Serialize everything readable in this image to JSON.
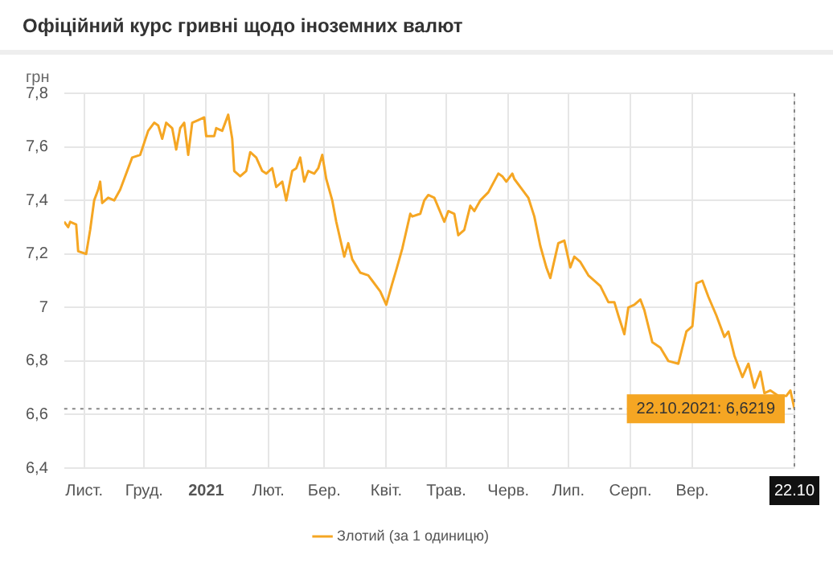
{
  "chart_data": {
    "type": "line",
    "title": "Офіційний курс гривні щодо іноземних валют",
    "ylabel": "грн",
    "x": [
      "2020-10-22",
      "2020-10-24",
      "2020-10-25",
      "2020-10-28",
      "2020-10-29",
      "2020-11-02",
      "2020-11-04",
      "2020-11-06",
      "2020-11-08",
      "2020-11-09",
      "2020-11-10",
      "2020-11-13",
      "2020-11-16",
      "2020-11-19",
      "2020-11-21",
      "2020-11-25",
      "2020-11-29",
      "2020-12-03",
      "2020-12-06",
      "2020-12-08",
      "2020-12-10",
      "2020-12-12",
      "2020-12-15",
      "2020-12-17",
      "2020-12-19",
      "2020-12-21",
      "2020-12-23",
      "2020-12-25",
      "2020-12-28",
      "2020-12-31",
      "2021-01-01",
      "2021-01-05",
      "2021-01-06",
      "2021-01-09",
      "2021-01-12",
      "2021-01-14",
      "2021-01-15",
      "2021-01-18",
      "2021-01-21",
      "2021-01-23",
      "2021-01-26",
      "2021-01-29",
      "2021-01-31",
      "2021-02-03",
      "2021-02-05",
      "2021-02-08",
      "2021-02-10",
      "2021-02-13",
      "2021-02-15",
      "2021-02-17",
      "2021-02-19",
      "2021-02-21",
      "2021-02-24",
      "2021-02-26",
      "2021-02-28",
      "2021-03-02",
      "2021-03-05",
      "2021-03-07",
      "2021-03-11",
      "2021-03-13",
      "2021-03-15",
      "2021-03-19",
      "2021-03-23",
      "2021-03-25",
      "2021-03-29",
      "2021-04-01",
      "2021-04-04",
      "2021-04-06",
      "2021-04-09",
      "2021-04-13",
      "2021-04-14",
      "2021-04-18",
      "2021-04-20",
      "2021-04-22",
      "2021-04-25",
      "2021-04-30",
      "2021-05-02",
      "2021-05-05",
      "2021-05-07",
      "2021-05-10",
      "2021-05-13",
      "2021-05-15",
      "2021-05-18",
      "2021-05-22",
      "2021-05-27",
      "2021-05-29",
      "2021-05-31",
      "2021-06-03",
      "2021-06-04",
      "2021-06-08",
      "2021-06-11",
      "2021-06-14",
      "2021-06-17",
      "2021-06-20",
      "2021-06-22",
      "2021-06-26",
      "2021-06-29",
      "2021-07-02",
      "2021-07-04",
      "2021-07-07",
      "2021-07-11",
      "2021-07-17",
      "2021-07-21",
      "2021-07-24",
      "2021-07-26",
      "2021-07-29",
      "2021-07-31",
      "2021-08-03",
      "2021-08-06",
      "2021-08-08",
      "2021-08-12",
      "2021-08-16",
      "2021-08-20",
      "2021-08-25",
      "2021-08-27",
      "2021-08-29",
      "2021-09-01",
      "2021-09-03",
      "2021-09-06",
      "2021-09-09",
      "2021-09-13",
      "2021-09-17",
      "2021-09-19",
      "2021-09-22",
      "2021-09-26",
      "2021-09-29",
      "2021-10-02",
      "2021-10-05",
      "2021-10-07",
      "2021-10-10",
      "2021-10-14",
      "2021-10-18",
      "2021-10-20",
      "2021-10-22"
    ],
    "series": [
      {
        "name": "Злотий (за 1 одиницю)",
        "color": "#f5a623",
        "values": [
          7.32,
          7.3,
          7.32,
          7.31,
          7.21,
          7.2,
          7.29,
          7.4,
          7.44,
          7.47,
          7.39,
          7.41,
          7.4,
          7.44,
          7.48,
          7.56,
          7.57,
          7.66,
          7.69,
          7.68,
          7.63,
          7.69,
          7.67,
          7.59,
          7.67,
          7.69,
          7.57,
          7.69,
          7.7,
          7.71,
          7.64,
          7.64,
          7.67,
          7.66,
          7.72,
          7.63,
          7.51,
          7.49,
          7.51,
          7.58,
          7.56,
          7.51,
          7.5,
          7.52,
          7.45,
          7.47,
          7.4,
          7.51,
          7.52,
          7.56,
          7.47,
          7.51,
          7.5,
          7.52,
          7.57,
          7.48,
          7.4,
          7.32,
          7.19,
          7.24,
          7.18,
          7.13,
          7.12,
          7.1,
          7.06,
          7.01,
          7.09,
          7.14,
          7.22,
          7.35,
          7.34,
          7.35,
          7.4,
          7.42,
          7.41,
          7.32,
          7.36,
          7.35,
          7.27,
          7.29,
          7.38,
          7.36,
          7.4,
          7.43,
          7.5,
          7.49,
          7.47,
          7.5,
          7.48,
          7.44,
          7.41,
          7.34,
          7.23,
          7.15,
          7.11,
          7.24,
          7.25,
          7.15,
          7.19,
          7.17,
          7.12,
          7.08,
          7.02,
          7.02,
          6.97,
          6.9,
          7.0,
          7.01,
          7.03,
          6.99,
          6.87,
          6.85,
          6.8,
          6.79,
          6.85,
          6.91,
          6.93,
          7.09,
          7.1,
          7.04,
          6.97,
          6.89,
          6.91,
          6.82,
          6.74,
          6.79,
          6.7,
          6.76,
          6.68,
          6.69,
          6.67,
          6.67,
          6.69,
          6.6219
        ]
      }
    ],
    "xlim": [
      "2020-10-22",
      "2021-10-22"
    ],
    "xticks": [
      {
        "value": "2020-11-01",
        "label": "Лист."
      },
      {
        "value": "2020-12-01",
        "label": "Груд."
      },
      {
        "value": "2021-01-01",
        "label": "2021"
      },
      {
        "value": "2021-02-01",
        "label": "Лют."
      },
      {
        "value": "2021-03-01",
        "label": "Бер."
      },
      {
        "value": "2021-04-01",
        "label": "Квіт."
      },
      {
        "value": "2021-05-01",
        "label": "Трав."
      },
      {
        "value": "2021-06-01",
        "label": "Черв."
      },
      {
        "value": "2021-07-01",
        "label": "Лип."
      },
      {
        "value": "2021-08-01",
        "label": "Серп."
      },
      {
        "value": "2021-09-01",
        "label": "Вер."
      },
      {
        "value": "2021-10-22",
        "label": "22.10"
      }
    ],
    "ylim": [
      6.4,
      7.8
    ],
    "yticks": [
      {
        "value": 6.4,
        "label": "6,4"
      },
      {
        "value": 6.6,
        "label": "6,6"
      },
      {
        "value": 6.8,
        "label": "6,8"
      },
      7,
      {
        "value": 7.2,
        "label": "7,2"
      },
      {
        "value": 7.4,
        "label": "7,4"
      },
      {
        "value": 7.6,
        "label": "7,6"
      },
      {
        "value": 7.8,
        "label": "7,8"
      }
    ],
    "ref_lines": [
      {
        "axis": "y",
        "value": 6.6219,
        "line_style": "dotted",
        "color": "#888888"
      },
      {
        "axis": "x",
        "value": "2021-10-22",
        "line_style": "dotted",
        "color": "#888888"
      }
    ],
    "annotations": [
      {
        "text": "22.10.2021: 6,6219",
        "x": "2021-10-22",
        "y": 6.6219
      }
    ],
    "grid": true,
    "legend": "bottom",
    "marker": "none",
    "line_style": "solid"
  }
}
